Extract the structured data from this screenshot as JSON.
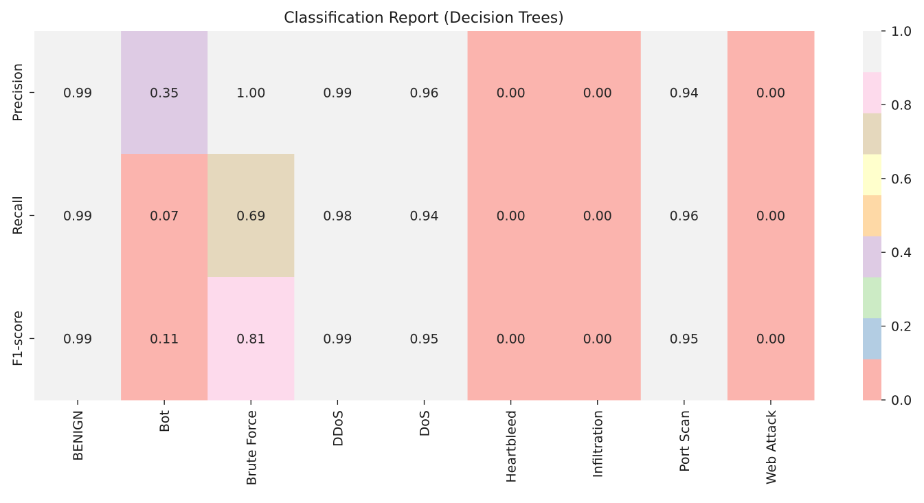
{
  "chart_data": {
    "type": "heatmap",
    "title": "Classification Report (Decision Trees)",
    "xlabel": "",
    "ylabel": "",
    "columns": [
      "BENIGN",
      "Bot",
      "Brute Force",
      "DDoS",
      "DoS",
      "Heartbleed",
      "Infiltration",
      "Port Scan",
      "Web Attack"
    ],
    "rows": [
      "Precision",
      "Recall",
      "F1-score"
    ],
    "values": [
      [
        0.99,
        0.35,
        1.0,
        0.99,
        0.96,
        0.0,
        0.0,
        0.94,
        0.0
      ],
      [
        0.99,
        0.07,
        0.69,
        0.98,
        0.94,
        0.0,
        0.0,
        0.96,
        0.0
      ],
      [
        0.99,
        0.11,
        0.81,
        0.99,
        0.95,
        0.0,
        0.0,
        0.95,
        0.0
      ]
    ],
    "value_format": "0.00",
    "colormap": "Pastel1",
    "colorbar": {
      "range": [
        0.0,
        1.0
      ],
      "ticks": [
        "0.0",
        "0.2",
        "0.4",
        "0.6",
        "0.8",
        "1.0"
      ],
      "colors": [
        "#fbb4ae",
        "#b3cde3",
        "#ccebc5",
        "#decbe4",
        "#fed9a6",
        "#ffffcc",
        "#e5d8bd",
        "#fddaec",
        "#f2f2f2"
      ]
    },
    "grid": false,
    "legend": "colorbar-right"
  }
}
